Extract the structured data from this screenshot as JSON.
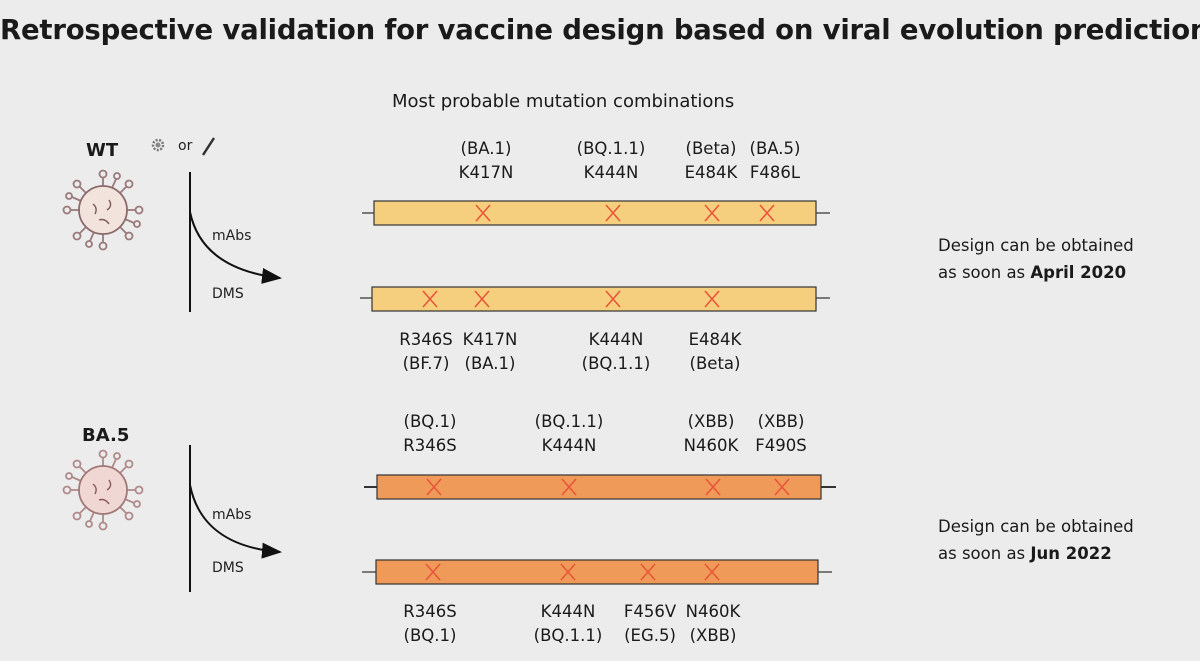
{
  "title": "Retrospective validation for vaccine design based on viral evolution prediction",
  "subtitle": "Most probable mutation combinations",
  "colors": {
    "wt_bar": "#f6cf7e",
    "ba5_bar": "#ef9a58",
    "cross": "#e8553a"
  },
  "sections": [
    {
      "strain": "WT",
      "source_or": "or",
      "axis_label_top": "mAbs",
      "axis_label_bottom": "DMS",
      "note_line1": "Design can be obtained",
      "note_line2_prefix": "as soon as ",
      "note_date": "April 2020",
      "bars": [
        {
          "mutations": [
            {
              "name": "K417N",
              "variant": "(BA.1)"
            },
            {
              "name": "K444N",
              "variant": "(BQ.1.1)"
            },
            {
              "name": "E484K",
              "variant": "(Beta)"
            },
            {
              "name": "F486L",
              "variant": "(BA.5)"
            }
          ]
        },
        {
          "mutations": [
            {
              "name": "R346S",
              "variant": "(BF.7)"
            },
            {
              "name": "K417N",
              "variant": "(BA.1)"
            },
            {
              "name": "K444N",
              "variant": "(BQ.1.1)"
            },
            {
              "name": "E484K",
              "variant": "(Beta)"
            }
          ]
        }
      ]
    },
    {
      "strain": "BA.5",
      "axis_label_top": "mAbs",
      "axis_label_bottom": "DMS",
      "note_line1": "Design can be obtained",
      "note_line2_prefix": "as soon as ",
      "note_date": "Jun 2022",
      "bars": [
        {
          "mutations": [
            {
              "name": "R346S",
              "variant": "(BQ.1)"
            },
            {
              "name": "K444N",
              "variant": "(BQ.1.1)"
            },
            {
              "name": "N460K",
              "variant": "(XBB)"
            },
            {
              "name": "F490S",
              "variant": "(XBB)"
            }
          ]
        },
        {
          "mutations": [
            {
              "name": "R346S",
              "variant": "(BQ.1)"
            },
            {
              "name": "K444N",
              "variant": "(BQ.1.1)"
            },
            {
              "name": "F456V",
              "variant": "(EG.5)"
            },
            {
              "name": "N460K",
              "variant": "(XBB)"
            }
          ]
        }
      ]
    }
  ]
}
